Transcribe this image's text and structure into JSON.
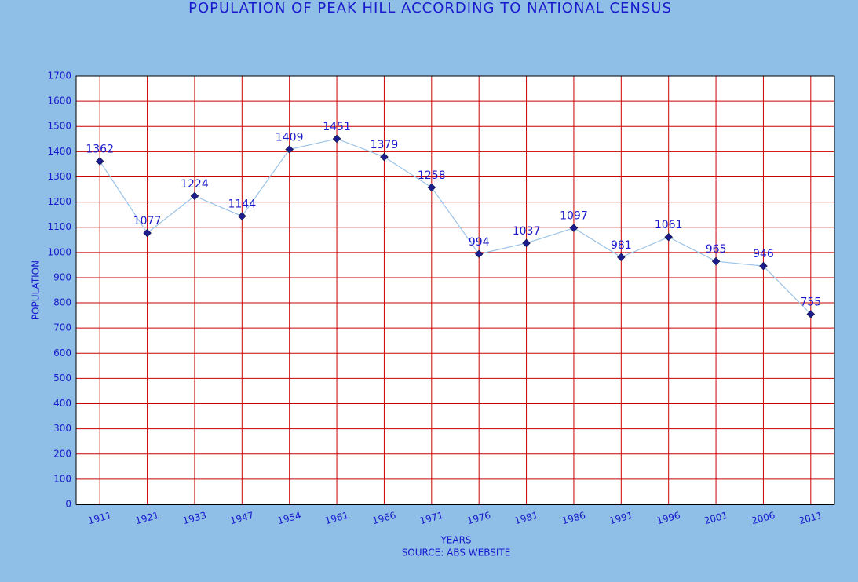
{
  "chart_data": {
    "type": "line",
    "title": "POPULATION OF PEAK HILL ACCORDING TO NATIONAL CENSUS",
    "x_label": "YEARS",
    "source": "SOURCE: ABS WEBSITE",
    "y_label": "POPULATION",
    "categories": [
      "1911",
      "1921",
      "1933",
      "1947",
      "1954",
      "1961",
      "1966",
      "1971",
      "1976",
      "1981",
      "1986",
      "1991",
      "1996",
      "2001",
      "2006",
      "2011"
    ],
    "series": [
      {
        "name": "Population",
        "color": "#9cc3e6",
        "marker_color": "#1c1c8c",
        "values": [
          1362,
          1077,
          1224,
          1144,
          1409,
          1451,
          1379,
          1258,
          994,
          1037,
          1097,
          981,
          1061,
          965,
          946,
          755
        ]
      }
    ],
    "ylim": [
      0,
      1700
    ],
    "yticks": [
      0,
      100,
      200,
      300,
      400,
      500,
      600,
      700,
      800,
      900,
      1000,
      1100,
      1200,
      1300,
      1400,
      1500,
      1600,
      1700
    ],
    "grid": true,
    "grid_color": "#cc0000"
  }
}
